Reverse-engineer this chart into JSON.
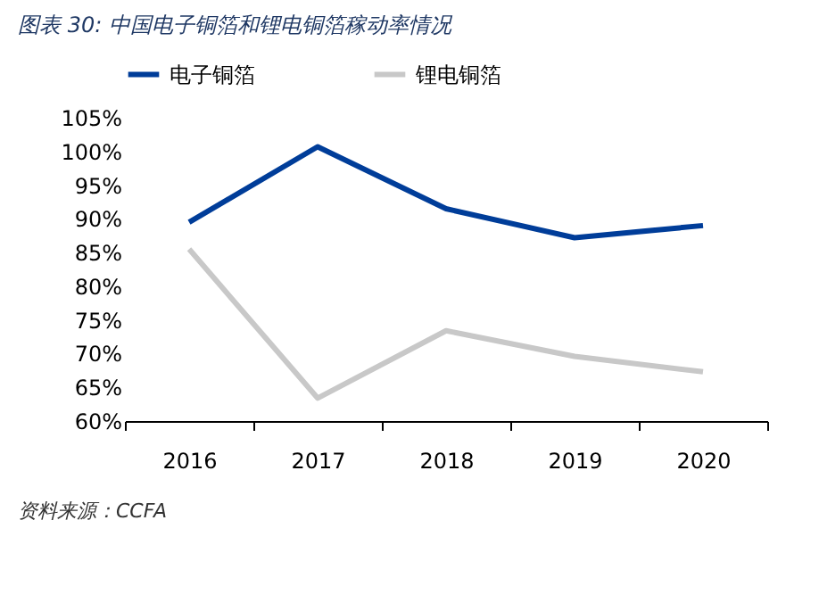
{
  "chart_data": {
    "type": "line",
    "title": "图表 30:  中国电子铜箔和锂电铜箔稼动率情况",
    "categories": [
      "2016",
      "2017",
      "2018",
      "2019",
      "2020"
    ],
    "series": [
      {
        "name": "电子铜箔",
        "color": "#003d99",
        "values": [
          89.5,
          100.7,
          91.5,
          87.2,
          89.0
        ]
      },
      {
        "name": "锂电铜箔",
        "color": "#c8c8c8",
        "values": [
          85.5,
          63.4,
          73.4,
          69.6,
          67.3
        ]
      }
    ],
    "ylim": [
      60,
      105
    ],
    "yticks": [
      {
        "value": 60,
        "label": "60%"
      },
      {
        "value": 65,
        "label": "65%"
      },
      {
        "value": 70,
        "label": "70%"
      },
      {
        "value": 75,
        "label": "75%"
      },
      {
        "value": 80,
        "label": "80%"
      },
      {
        "value": 85,
        "label": "85%"
      },
      {
        "value": 90,
        "label": "90%"
      },
      {
        "value": 95,
        "label": "95%"
      },
      {
        "value": 100,
        "label": "100%"
      },
      {
        "value": 105,
        "label": "105%"
      }
    ],
    "grid": false,
    "legend": "top",
    "marker": "none",
    "line_style": "solid",
    "annotations": [
      "资料来源：CCFA"
    ]
  }
}
